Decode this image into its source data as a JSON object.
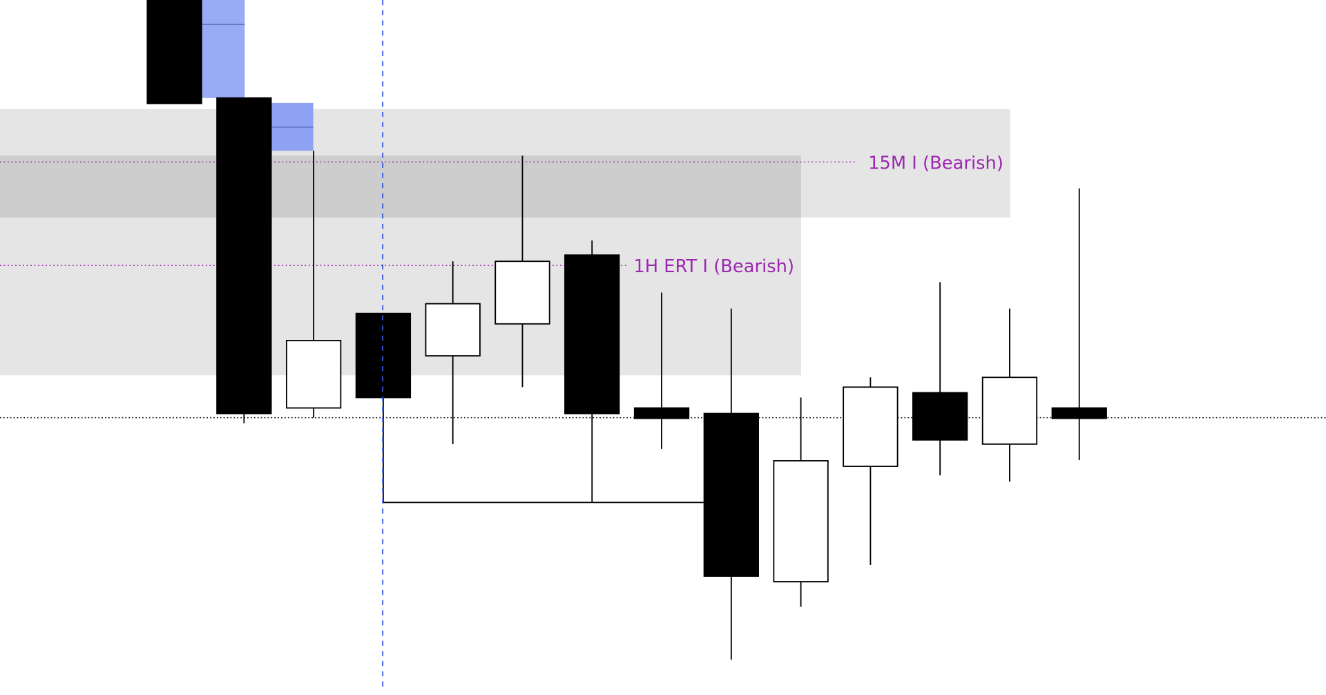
{
  "chart_data": {
    "type": "candlestick",
    "ylim": [
      0,
      100
    ],
    "up_color": "#ffffff",
    "down_color": "#000000",
    "candles": [
      {
        "open": 100,
        "high": 100,
        "low": 85.1,
        "close": 85.1
      },
      {
        "open": 85.9,
        "high": 85.9,
        "low": 39.1,
        "close": 40.5
      },
      {
        "open": 41.3,
        "high": 78.3,
        "low": 39.9,
        "close": 51.0
      },
      {
        "open": 54.9,
        "high": 54.9,
        "low": 27.7,
        "close": 42.8
      },
      {
        "open": 48.8,
        "high": 62.4,
        "low": 36.1,
        "close": 56.3
      },
      {
        "open": 53.4,
        "high": 77.6,
        "low": 44.3,
        "close": 62.4
      },
      {
        "open": 63.3,
        "high": 65.4,
        "low": 27.7,
        "close": 40.5
      },
      {
        "open": 41.3,
        "high": 57.9,
        "low": 35.4,
        "close": 39.8
      },
      {
        "open": 40.5,
        "high": 55.6,
        "low": 5.1,
        "close": 17.1
      },
      {
        "open": 16.3,
        "high": 42.8,
        "low": 12.7,
        "close": 33.7
      },
      {
        "open": 32.9,
        "high": 45.7,
        "low": 18.7,
        "close": 44.3
      },
      {
        "open": 43.5,
        "high": 59.4,
        "low": 31.6,
        "close": 36.7
      },
      {
        "open": 36.1,
        "high": 55.6,
        "low": 30.7,
        "close": 45.7
      },
      {
        "open": 41.3,
        "high": 72.9,
        "low": 33.8,
        "close": 39.8
      }
    ],
    "zones": [
      {
        "label": "15M I (Bearish)",
        "top": 84.3,
        "bottom": 68.7,
        "mid": 76.7,
        "color": "#9c27b0"
      },
      {
        "label": "1H ERT I (Bearish)",
        "top": 77.6,
        "bottom": 46.0,
        "mid": 61.8,
        "color": "#9c27b0"
      }
    ],
    "fvgs": [
      {
        "top": 100,
        "bottom": 85.9,
        "mid": 96.5,
        "color": "#9aabf6"
      },
      {
        "top": 85.2,
        "bottom": 78.3,
        "mid": 81.7,
        "color": "#8fa1f2"
      }
    ],
    "levels": [
      {
        "value": 39.9,
        "style": "dotted"
      },
      {
        "value": 27.7,
        "style": "solid"
      }
    ]
  }
}
